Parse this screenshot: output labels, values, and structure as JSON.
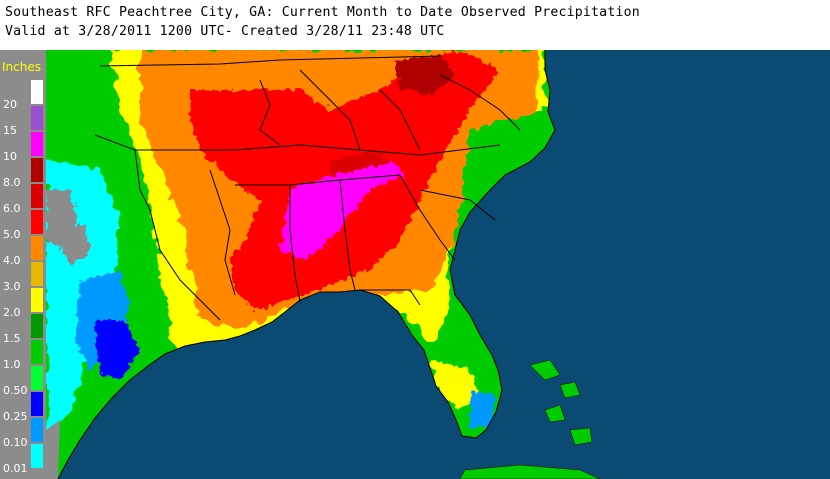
{
  "header": {
    "title": "Southeast RFC Peachtree City, GA: Current Month to Date Observed Precipitation",
    "subtitle": "Valid at 3/28/2011 1200 UTC- Created 3/28/11 23:48 UTC"
  },
  "legend": {
    "title": "Inches",
    "items": [
      {
        "label": "20",
        "color": "#ffffff"
      },
      {
        "label": "15",
        "color": "#9a4fd0"
      },
      {
        "label": "10",
        "color": "#ff00ff"
      },
      {
        "label": "8.0",
        "color": "#b00000"
      },
      {
        "label": "6.0",
        "color": "#dd0000"
      },
      {
        "label": "5.0",
        "color": "#ff0000"
      },
      {
        "label": "4.0",
        "color": "#ff8800"
      },
      {
        "label": "3.0",
        "color": "#e8b800"
      },
      {
        "label": "2.0",
        "color": "#ffff00"
      },
      {
        "label": "1.5",
        "color": "#009900"
      },
      {
        "label": "1.0",
        "color": "#00cc00"
      },
      {
        "label": "0.50",
        "color": "#00ff33"
      },
      {
        "label": "0.25",
        "color": "#0000ff"
      },
      {
        "label": "0.10",
        "color": "#0099ff"
      },
      {
        "label": "0.01",
        "color": "#00ffff"
      }
    ]
  },
  "map": {
    "ocean_color": "#0b4b73",
    "land_outside_color": "#8c8c8c",
    "border_color": "#000000"
  }
}
